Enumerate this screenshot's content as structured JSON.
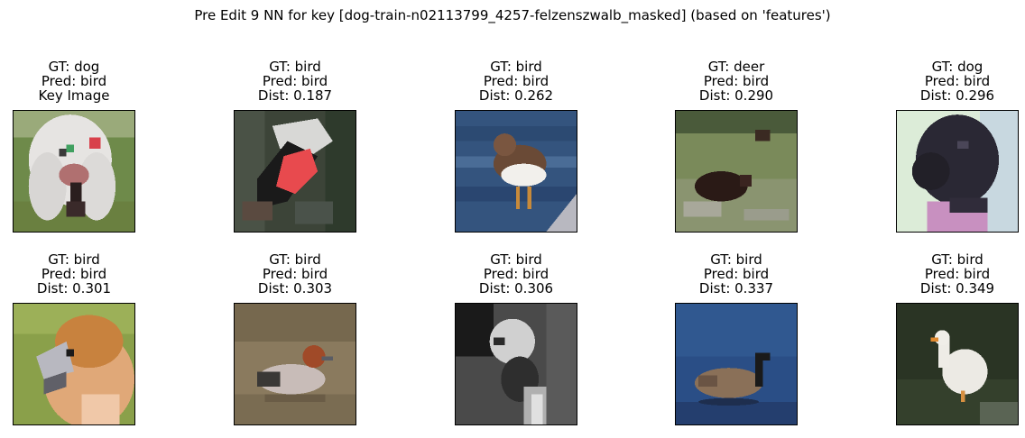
{
  "title": "Pre Edit 9 NN for key [dog-train-n02113799_4257-felzenszwalb_masked] (based on 'features')",
  "panels": [
    {
      "gt": "GT: dog",
      "pred": "Pred: bird",
      "third": "Key Image",
      "picture": "white-dog-key-image"
    },
    {
      "gt": "GT: bird",
      "pred": "Pred: bird",
      "third": "Dist: 0.187",
      "picture": "bird-red-wing"
    },
    {
      "gt": "GT: bird",
      "pred": "Pred: bird",
      "third": "Dist: 0.262",
      "picture": "sandpiper-on-water"
    },
    {
      "gt": "GT: deer",
      "pred": "Pred: bird",
      "third": "Dist: 0.290",
      "picture": "deer-lying-in-grass"
    },
    {
      "gt": "GT: dog",
      "pred": "Pred: bird",
      "third": "Dist: 0.296",
      "picture": "black-dog-head"
    },
    {
      "gt": "GT: bird",
      "pred": "Pred: bird",
      "third": "Dist: 0.301",
      "picture": "hawfinch-on-grass"
    },
    {
      "gt": "GT: bird",
      "pred": "Pred: bird",
      "third": "Dist: 0.303",
      "picture": "duck-on-pond"
    },
    {
      "gt": "GT: bird",
      "pred": "Pred: bird",
      "third": "Dist: 0.306",
      "picture": "grayscale-bird"
    },
    {
      "gt": "GT: bird",
      "pred": "Pred: bird",
      "third": "Dist: 0.337",
      "picture": "goose-on-blue-water"
    },
    {
      "gt": "GT: bird",
      "pred": "Pred: bird",
      "third": "Dist: 0.349",
      "picture": "white-duck-dark-background"
    }
  ]
}
